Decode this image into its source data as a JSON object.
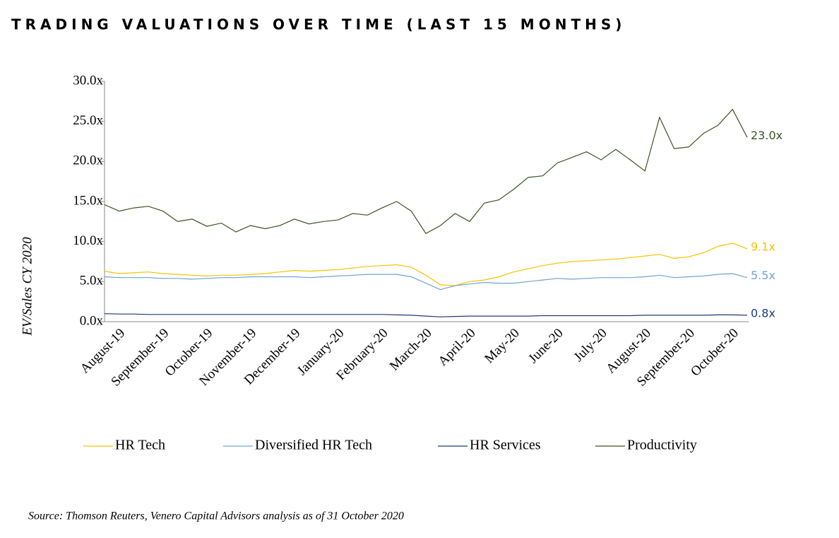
{
  "chart_data": {
    "type": "line",
    "title": "TRADING VALUATIONS OVER TIME (LAST 15 MONTHS)",
    "y_label": "EV/Sales CY 2020",
    "source": "Source: Thomson Reuters, Venero Capital Advisors analysis as of 31 October 2020",
    "categories": [
      null,
      "August-19",
      null,
      null,
      "September-19",
      null,
      null,
      "October-19",
      null,
      null,
      "November-19",
      null,
      null,
      "December-19",
      null,
      null,
      "January-20",
      null,
      null,
      "February-20",
      null,
      null,
      "March-20",
      null,
      null,
      "April-20",
      null,
      null,
      "May-20",
      null,
      null,
      "June-20",
      null,
      null,
      "July-20",
      null,
      null,
      "August-20",
      null,
      null,
      "September-20",
      null,
      null,
      "October-20",
      null
    ],
    "ylim": [
      0,
      30
    ],
    "yticks": [
      {
        "value": 0,
        "label": "0.0x"
      },
      {
        "value": 5,
        "label": "5.0x"
      },
      {
        "value": 10,
        "label": "10.0x"
      },
      {
        "value": 15,
        "label": "15.0x"
      },
      {
        "value": 20,
        "label": "20.0x"
      },
      {
        "value": 25,
        "label": "25.0x"
      },
      {
        "value": 30,
        "label": "30.0x"
      }
    ],
    "legend": "bottom",
    "series": [
      {
        "name": "HR Tech",
        "color": "#f5c400",
        "values": [
          6.3,
          6.0,
          6.1,
          6.2,
          6.0,
          5.9,
          5.8,
          5.7,
          5.8,
          5.8,
          5.9,
          6.0,
          6.2,
          6.4,
          6.3,
          6.4,
          6.5,
          6.7,
          6.9,
          7.0,
          7.1,
          6.8,
          5.8,
          4.6,
          4.5,
          5.0,
          5.2,
          5.6,
          6.2,
          6.6,
          7.0,
          7.3,
          7.5,
          7.6,
          7.7,
          7.8,
          8.0,
          8.2,
          8.4,
          7.9,
          8.1,
          8.6,
          9.4,
          9.8,
          9.1
        ],
        "value_labels": [
          null,
          null,
          null,
          null,
          null,
          null,
          null,
          null,
          null,
          null,
          null,
          null,
          null,
          null,
          null,
          null,
          null,
          null,
          null,
          null,
          null,
          null,
          null,
          null,
          null,
          null,
          null,
          null,
          null,
          null,
          null,
          null,
          null,
          null,
          null,
          null,
          null,
          null,
          null,
          null,
          null,
          null,
          null,
          null,
          "9.1x"
        ]
      },
      {
        "name": "Diversified HR Tech",
        "color": "#6fa3d6",
        "values": [
          5.6,
          5.5,
          5.5,
          5.5,
          5.4,
          5.4,
          5.3,
          5.4,
          5.5,
          5.5,
          5.6,
          5.6,
          5.6,
          5.6,
          5.5,
          5.6,
          5.7,
          5.8,
          5.9,
          5.9,
          5.9,
          5.6,
          4.8,
          4.0,
          4.5,
          4.7,
          4.9,
          4.8,
          4.8,
          5.0,
          5.2,
          5.4,
          5.3,
          5.4,
          5.5,
          5.5,
          5.5,
          5.6,
          5.8,
          5.5,
          5.6,
          5.7,
          5.9,
          6.0,
          5.5
        ],
        "value_labels": [
          null,
          null,
          null,
          null,
          null,
          null,
          null,
          null,
          null,
          null,
          null,
          null,
          null,
          null,
          null,
          null,
          null,
          null,
          null,
          null,
          null,
          null,
          null,
          null,
          null,
          null,
          null,
          null,
          null,
          null,
          null,
          null,
          null,
          null,
          null,
          null,
          null,
          null,
          null,
          null,
          null,
          null,
          null,
          null,
          "5.5x"
        ]
      },
      {
        "name": "HR Services",
        "color": "#1f3b73",
        "values": [
          1.0,
          0.95,
          0.95,
          0.9,
          0.9,
          0.9,
          0.9,
          0.9,
          0.9,
          0.9,
          0.9,
          0.9,
          0.9,
          0.9,
          0.9,
          0.9,
          0.9,
          0.9,
          0.9,
          0.9,
          0.85,
          0.8,
          0.7,
          0.6,
          0.65,
          0.7,
          0.7,
          0.7,
          0.7,
          0.7,
          0.75,
          0.75,
          0.75,
          0.75,
          0.75,
          0.75,
          0.75,
          0.8,
          0.8,
          0.8,
          0.8,
          0.8,
          0.85,
          0.85,
          0.8
        ],
        "value_labels": [
          null,
          null,
          null,
          null,
          null,
          null,
          null,
          null,
          null,
          null,
          null,
          null,
          null,
          null,
          null,
          null,
          null,
          null,
          null,
          null,
          null,
          null,
          null,
          null,
          null,
          null,
          null,
          null,
          null,
          null,
          null,
          null,
          null,
          null,
          null,
          null,
          null,
          null,
          null,
          null,
          null,
          null,
          null,
          null,
          "0.8x"
        ]
      },
      {
        "name": "Productivity",
        "color": "#3b5323",
        "values": [
          14.6,
          13.8,
          14.2,
          14.4,
          13.8,
          12.5,
          12.8,
          11.9,
          12.3,
          11.2,
          12.0,
          11.6,
          12.0,
          12.8,
          12.2,
          12.5,
          12.7,
          13.5,
          13.3,
          14.2,
          15.0,
          13.8,
          11.0,
          12.0,
          13.5,
          12.5,
          14.8,
          15.2,
          16.5,
          18.0,
          18.2,
          19.8,
          20.5,
          21.2,
          20.2,
          21.5,
          20.2,
          18.8,
          25.5,
          21.6,
          21.8,
          23.5,
          24.5,
          26.5,
          23.0
        ],
        "value_labels": [
          null,
          null,
          null,
          null,
          null,
          null,
          null,
          null,
          null,
          null,
          null,
          null,
          null,
          null,
          null,
          null,
          null,
          null,
          null,
          null,
          null,
          null,
          null,
          null,
          null,
          null,
          null,
          null,
          null,
          null,
          null,
          null,
          null,
          null,
          null,
          null,
          null,
          null,
          null,
          null,
          null,
          null,
          null,
          null,
          "23.0x"
        ]
      }
    ]
  }
}
